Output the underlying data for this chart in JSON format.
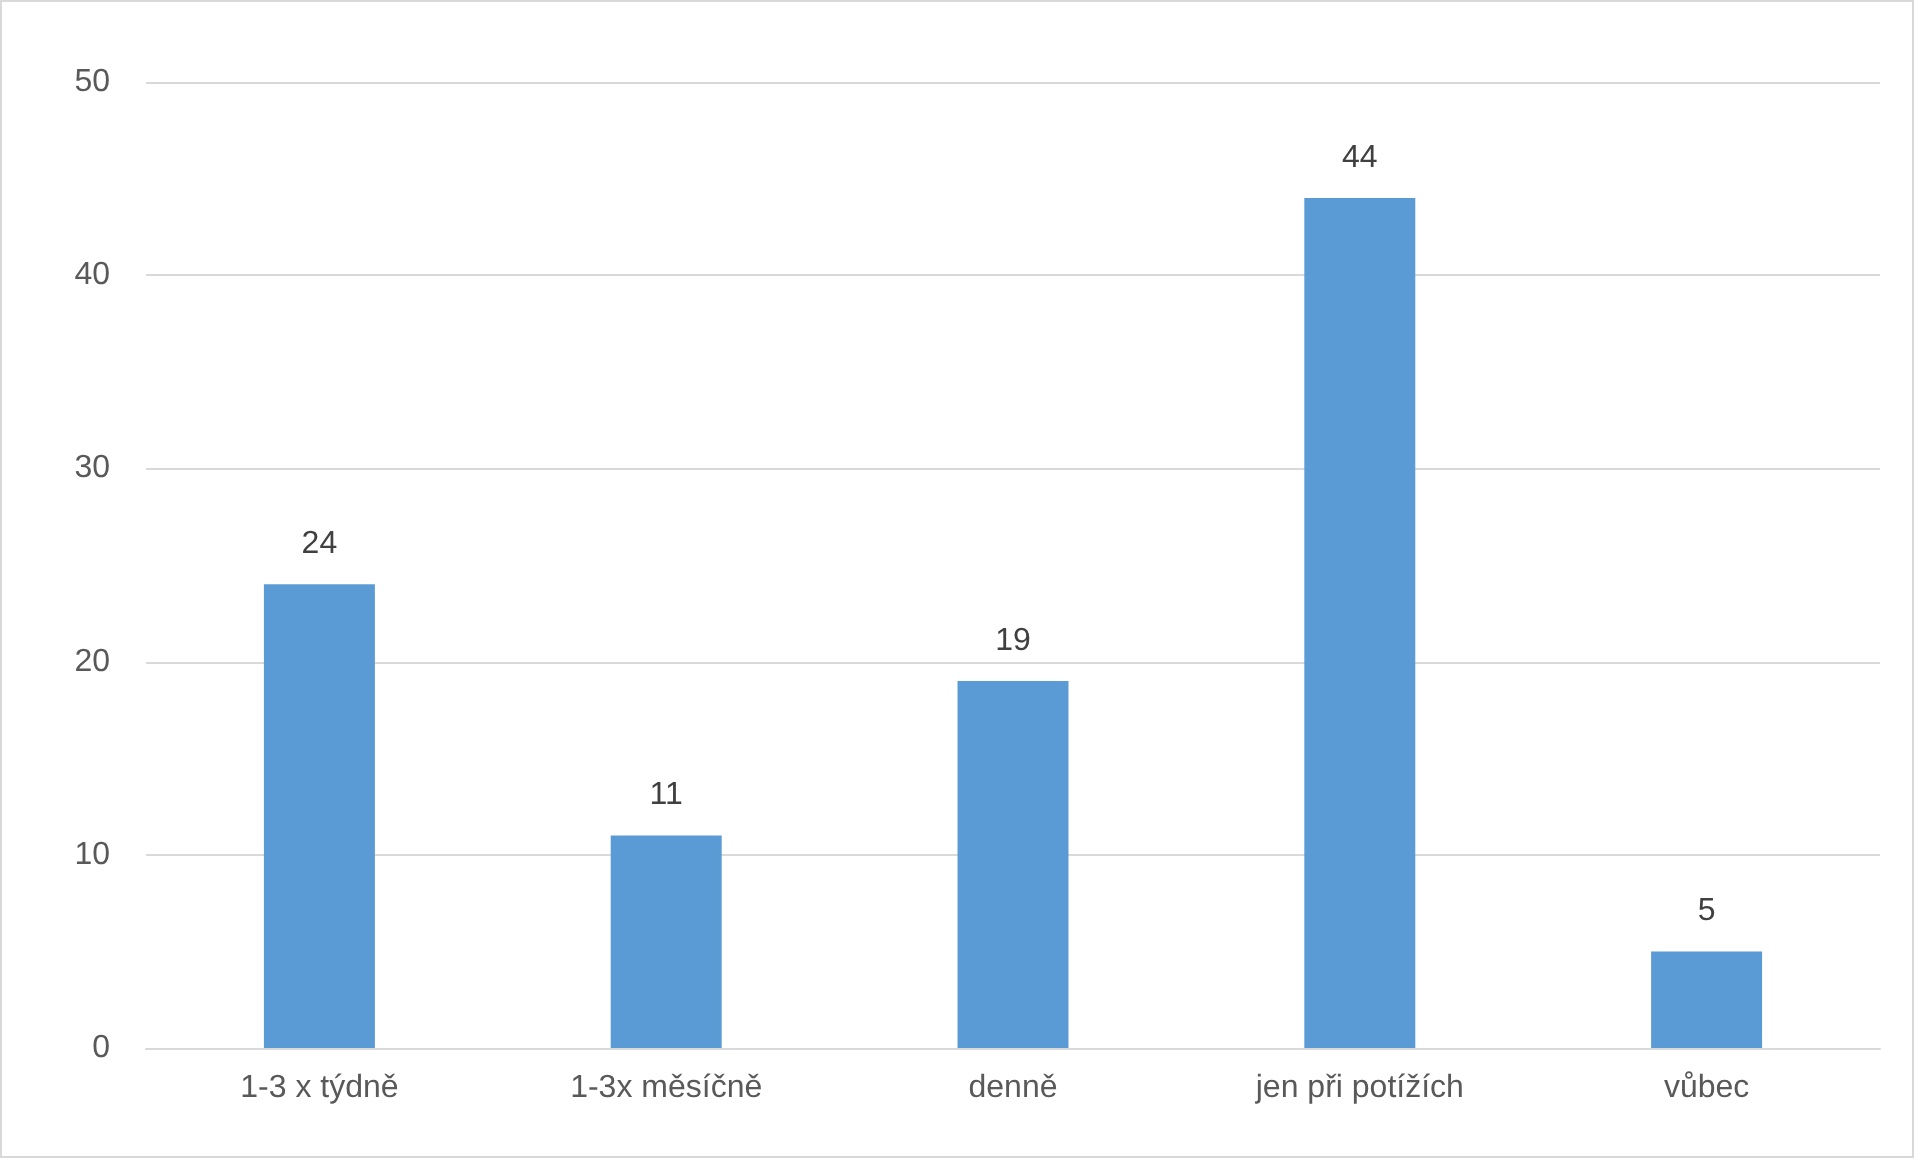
{
  "chart_data": {
    "type": "bar",
    "categories": [
      "1-3 x týdně",
      "1-3x měsíčně",
      "denně",
      "jen při potížích",
      "vůbec"
    ],
    "values": [
      24,
      11,
      19,
      44,
      5
    ],
    "color": "#5b9bd5",
    "ylim": [
      0,
      50
    ],
    "yticks": [
      0,
      10,
      20,
      30,
      40,
      50
    ],
    "grid": "y",
    "data_labels": true
  }
}
